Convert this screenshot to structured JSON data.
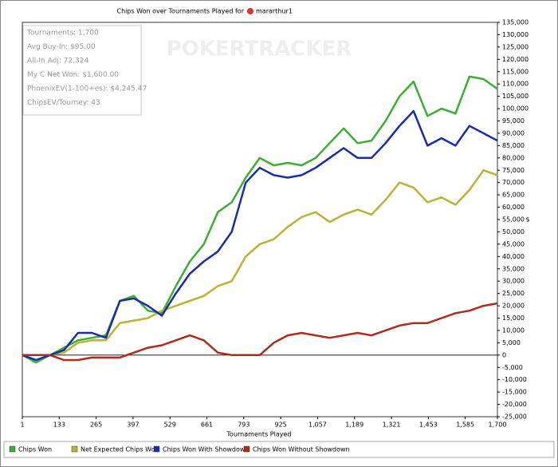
{
  "chart_data": {
    "type": "line",
    "title": "Chips Won over Tournaments Played for",
    "player": "mararthur1",
    "watermark": "POKERTRACKER",
    "x_label": "Tournaments Played",
    "y_label": "$",
    "info_box": [
      "Tournaments: 1,700",
      "Avg Buy-In: $95.00",
      "All-In Adj: 72,324",
      "My C Net Won: $1,600.00",
      "PhoenixEV(1-100+es): $4,245.47",
      "ChipsEV/Tourney: 43"
    ],
    "x": [
      1,
      50,
      100,
      150,
      200,
      250,
      300,
      350,
      400,
      450,
      500,
      550,
      600,
      650,
      700,
      750,
      800,
      850,
      900,
      950,
      1000,
      1050,
      1100,
      1150,
      1200,
      1250,
      1300,
      1350,
      1400,
      1450,
      1500,
      1550,
      1600,
      1650,
      1700
    ],
    "series": [
      {
        "name": "Chips Won",
        "color": "#3cae33",
        "values": [
          0,
          -3000,
          0,
          3000,
          6000,
          7000,
          8000,
          22000,
          24000,
          18000,
          17000,
          28000,
          38000,
          45000,
          58000,
          62000,
          72000,
          80000,
          77000,
          78000,
          77000,
          80000,
          86000,
          92000,
          86000,
          87000,
          95000,
          105000,
          111000,
          97000,
          100000,
          98000,
          113000,
          112000,
          108000
        ]
      },
      {
        "name": "Net Expected Chips Won",
        "color": "#b9b433",
        "values": [
          0,
          -2000,
          0,
          1000,
          5000,
          6000,
          6000,
          13000,
          14000,
          15000,
          18000,
          20000,
          22000,
          24000,
          28000,
          30000,
          40000,
          45000,
          47000,
          52000,
          56000,
          58000,
          54000,
          57000,
          59000,
          57000,
          63000,
          70000,
          68000,
          62000,
          64000,
          61000,
          67000,
          75000,
          73000
        ]
      },
      {
        "name": "Chips Won With Showdown",
        "color": "#1a2caa",
        "values": [
          0,
          -2000,
          0,
          2000,
          9000,
          9000,
          7000,
          22000,
          23000,
          20000,
          16000,
          25000,
          33000,
          38000,
          42000,
          50000,
          70000,
          76000,
          73000,
          72000,
          73000,
          76000,
          80000,
          84000,
          80000,
          80000,
          86000,
          93000,
          99000,
          85000,
          88000,
          85000,
          93000,
          90000,
          87000
        ]
      },
      {
        "name": "Chips Won Without Showdown",
        "color": "#b02b1c",
        "values": [
          0,
          0,
          0,
          -2000,
          -2000,
          -1000,
          -1000,
          -1000,
          1000,
          3000,
          4000,
          6000,
          8000,
          6000,
          1000,
          0,
          0,
          0,
          5000,
          8000,
          9000,
          8000,
          7000,
          8000,
          9000,
          8000,
          10000,
          12000,
          13000,
          13000,
          15000,
          17000,
          18000,
          20000,
          21000
        ]
      }
    ],
    "xlim": [
      1,
      1700
    ],
    "xticks": [
      1,
      133,
      265,
      397,
      529,
      661,
      793,
      925,
      {
        "value": 1057,
        "label": "1,057"
      },
      {
        "value": 1189,
        "label": "1,189"
      },
      {
        "value": 1321,
        "label": "1,321"
      },
      {
        "value": 1453,
        "label": "1,453"
      },
      {
        "value": 1585,
        "label": "1,585"
      },
      {
        "value": 1700,
        "label": "1,700"
      }
    ],
    "ylim": [
      -25000,
      135000
    ],
    "yticks": [
      {
        "value": -25000,
        "label": "-25,000"
      },
      {
        "value": -20000,
        "label": "-20,000"
      },
      {
        "value": -15000,
        "label": "-15,000"
      },
      {
        "value": -10000,
        "label": "-10,000"
      },
      {
        "value": -5000,
        "label": "-5,000"
      },
      0,
      {
        "value": 5000,
        "label": "5,000"
      },
      {
        "value": 10000,
        "label": "10,000"
      },
      {
        "value": 15000,
        "label": "15,000"
      },
      {
        "value": 20000,
        "label": "20,000"
      },
      {
        "value": 25000,
        "label": "25,000"
      },
      {
        "value": 30000,
        "label": "30,000"
      },
      {
        "value": 35000,
        "label": "35,000"
      },
      {
        "value": 40000,
        "label": "40,000"
      },
      {
        "value": 45000,
        "label": "45,000"
      },
      {
        "value": 50000,
        "label": "50,000"
      },
      {
        "value": 55000,
        "label": "55,000"
      },
      {
        "value": 60000,
        "label": "60,000"
      },
      {
        "value": 65000,
        "label": "65,000"
      },
      {
        "value": 70000,
        "label": "70,000"
      },
      {
        "value": 75000,
        "label": "75,000"
      },
      {
        "value": 80000,
        "label": "80,000"
      },
      {
        "value": 85000,
        "label": "85,000"
      },
      {
        "value": 90000,
        "label": "90,000"
      },
      {
        "value": 95000,
        "label": "95,000"
      },
      {
        "value": 100000,
        "label": "100,000"
      },
      {
        "value": 105000,
        "label": "105,000"
      },
      {
        "value": 110000,
        "label": "110,000"
      },
      {
        "value": 115000,
        "label": "115,000"
      },
      {
        "value": 120000,
        "label": "120,000"
      },
      {
        "value": 125000,
        "label": "125,000"
      },
      {
        "value": 130000,
        "label": "130,000"
      },
      {
        "value": 135000,
        "label": "135,000"
      }
    ],
    "zero_line": true,
    "legend": "bottom"
  }
}
